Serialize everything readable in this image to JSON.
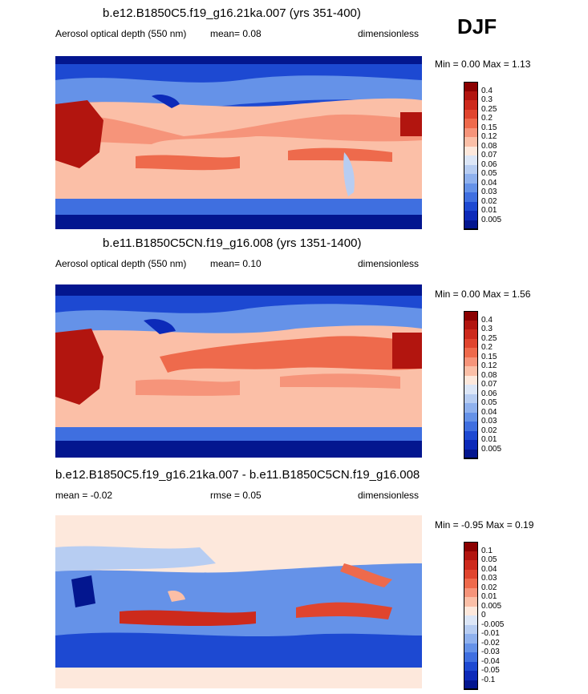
{
  "season": "DJF",
  "chart_data": [
    {
      "type": "heatmap",
      "title": "b.e12.B1850C5.f19_g16.21ka.007 (yrs 351-400)",
      "variable": "Aerosol optical depth (550 nm)",
      "units": "dimensionless",
      "stats_left": "mean=  0.08",
      "minmax": "Min =   0.00 Max =   1.13",
      "colorbar_levels": [
        "0.4",
        "0.3",
        "0.25",
        "0.2",
        "0.15",
        "0.12",
        "0.08",
        "0.07",
        "0.06",
        "0.05",
        "0.04",
        "0.03",
        "0.02",
        "0.01",
        "0.005"
      ],
      "colorbar_colors": [
        "#8b0000",
        "#b2150f",
        "#cd2a1c",
        "#e0452e",
        "#ee6a4c",
        "#f6947a",
        "#fbbfa7",
        "#fde8dc",
        "#dce6f7",
        "#b7cdf2",
        "#8fb1ee",
        "#6592e8",
        "#3f6fe0",
        "#1d49d2",
        "#0c2ab9",
        "#03168f"
      ]
    },
    {
      "type": "heatmap",
      "title": "b.e11.B1850C5CN.f19_g16.008 (yrs 1351-1400)",
      "variable": "Aerosol optical depth (550 nm)",
      "units": "dimensionless",
      "stats_left": "mean=  0.10",
      "minmax": "Min =   0.00 Max =   1.56",
      "colorbar_levels": [
        "0.4",
        "0.3",
        "0.25",
        "0.2",
        "0.15",
        "0.12",
        "0.08",
        "0.07",
        "0.06",
        "0.05",
        "0.04",
        "0.03",
        "0.02",
        "0.01",
        "0.005"
      ],
      "colorbar_colors": [
        "#8b0000",
        "#b2150f",
        "#cd2a1c",
        "#e0452e",
        "#ee6a4c",
        "#f6947a",
        "#fbbfa7",
        "#fde8dc",
        "#dce6f7",
        "#b7cdf2",
        "#8fb1ee",
        "#6592e8",
        "#3f6fe0",
        "#1d49d2",
        "#0c2ab9",
        "#03168f"
      ]
    },
    {
      "type": "heatmap",
      "title": "b.e12.B1850C5.f19_g16.21ka.007 - b.e11.B1850C5CN.f19_g16.008",
      "variable": "",
      "units": "dimensionless",
      "stats_left": "mean =  -0.02",
      "stats_mid": "rmse =   0.05",
      "minmax": "Min =  -0.95 Max =   0.19",
      "colorbar_levels": [
        "0.1",
        "0.05",
        "0.04",
        "0.03",
        "0.02",
        "0.01",
        "0.005",
        "0",
        "-0.005",
        "-0.01",
        "-0.02",
        "-0.03",
        "-0.04",
        "-0.05",
        "-0.1"
      ],
      "colorbar_colors": [
        "#8b0000",
        "#b2150f",
        "#cd2a1c",
        "#e0452e",
        "#ee6a4c",
        "#f6947a",
        "#fbbfa7",
        "#fde8dc",
        "#dce6f7",
        "#b7cdf2",
        "#8fb1ee",
        "#6592e8",
        "#3f6fe0",
        "#1d49d2",
        "#0c2ab9",
        "#03168f"
      ]
    }
  ]
}
